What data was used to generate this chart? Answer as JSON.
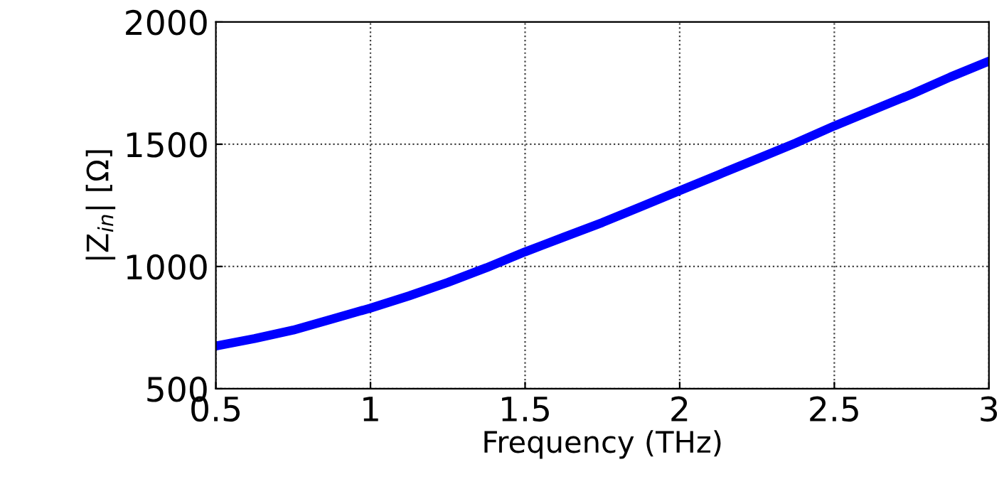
{
  "chart_data": {
    "type": "line",
    "xlabel": "Frequency (THz)",
    "ylabel": "|Z$_{in}$| [Ω]",
    "x": [
      0.5,
      0.625,
      0.75,
      0.875,
      1,
      1.125,
      1.25,
      1.375,
      1.5,
      1.625,
      1.75,
      1.875,
      2,
      2.125,
      2.25,
      2.375,
      2.5,
      2.625,
      2.75,
      2.875,
      3
    ],
    "series": [
      {
        "color": "#0000ff",
        "values": [
          675,
          705,
          740,
          785,
          830,
          880,
          935,
          995,
          1060,
          1120,
          1180,
          1245,
          1310,
          1375,
          1440,
          1505,
          1575,
          1640,
          1705,
          1775,
          1840
        ]
      }
    ],
    "xlim": [
      0.5,
      3
    ],
    "ylim": [
      500,
      2000
    ],
    "xticks": [
      0.5,
      1,
      1.5,
      2,
      2.5,
      3
    ],
    "yticks": [
      500,
      1000,
      1500,
      2000
    ],
    "grid": true,
    "line_style": "solid",
    "marker": "none"
  }
}
